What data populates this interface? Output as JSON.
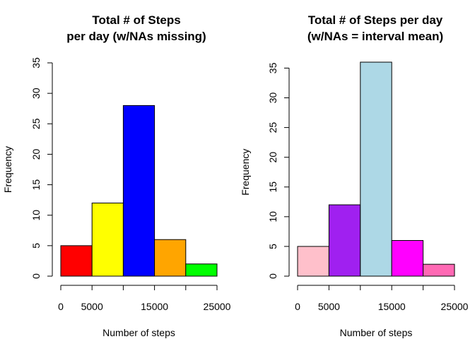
{
  "chart_data": [
    {
      "type": "bar",
      "title_lines": [
        "Total # of Steps",
        "per day (w/NAs missing)"
      ],
      "xlabel": "Number of steps",
      "ylabel": "Frequency",
      "bins": [
        {
          "from": 0,
          "to": 5000,
          "value": 5,
          "color": "#ff0000"
        },
        {
          "from": 5000,
          "to": 10000,
          "value": 12,
          "color": "#ffff00"
        },
        {
          "from": 10000,
          "to": 15000,
          "value": 28,
          "color": "#0000ff"
        },
        {
          "from": 15000,
          "to": 20000,
          "value": 6,
          "color": "#ffa500"
        },
        {
          "from": 20000,
          "to": 25000,
          "value": 2,
          "color": "#00ff00"
        }
      ],
      "xlim": [
        0,
        25000
      ],
      "ylim": [
        0,
        35
      ],
      "x_ticks": [
        0,
        5000,
        10000,
        15000,
        20000,
        25000
      ],
      "x_tick_labels": [
        "0",
        "5000",
        "",
        "15000",
        "",
        "25000"
      ],
      "y_ticks": [
        0,
        5,
        10,
        15,
        20,
        25,
        30,
        35
      ],
      "y_tick_labels": [
        "0",
        "5",
        "10",
        "15",
        "20",
        "25",
        "30",
        "35"
      ]
    },
    {
      "type": "bar",
      "title_lines": [
        "Total # of Steps per day",
        "(w/NAs = interval mean)"
      ],
      "xlabel": "Number of steps",
      "ylabel": "Frequency",
      "bins": [
        {
          "from": 0,
          "to": 5000,
          "value": 5,
          "color": "#ffc0cb"
        },
        {
          "from": 5000,
          "to": 10000,
          "value": 12,
          "color": "#a020f0"
        },
        {
          "from": 10000,
          "to": 15000,
          "value": 36,
          "color": "#add8e6"
        },
        {
          "from": 15000,
          "to": 20000,
          "value": 6,
          "color": "#ff00ff"
        },
        {
          "from": 20000,
          "to": 25000,
          "value": 2,
          "color": "#ff69b4"
        }
      ],
      "xlim": [
        0,
        25000
      ],
      "ylim": [
        0,
        36
      ],
      "x_ticks": [
        0,
        5000,
        10000,
        15000,
        20000,
        25000
      ],
      "x_tick_labels": [
        "0",
        "5000",
        "",
        "15000",
        "",
        "25000"
      ],
      "y_ticks": [
        0,
        5,
        10,
        15,
        20,
        25,
        30,
        35
      ],
      "y_tick_labels": [
        "0",
        "5",
        "10",
        "15",
        "20",
        "25",
        "30",
        "35"
      ]
    }
  ]
}
